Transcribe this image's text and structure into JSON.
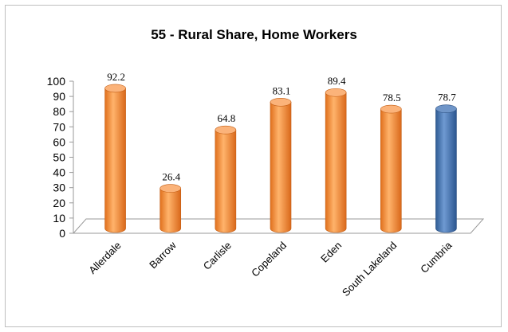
{
  "chart_data": {
    "type": "bar",
    "title": "55 - Rural Share, Home Workers",
    "xlabel": "",
    "ylabel": "",
    "categories": [
      "Allerdale",
      "Barrow",
      "Carlisle",
      "Copeland",
      "Eden",
      "South Lakeland",
      "Cumbria"
    ],
    "values": [
      92.2,
      26.4,
      64.8,
      83.1,
      89.4,
      78.5,
      78.7
    ],
    "value_labels": [
      "92.2",
      "26.4",
      "64.8",
      "83.1",
      "89.4",
      "78.5",
      "78.7"
    ],
    "ylim": [
      0,
      100
    ],
    "yticks": [
      0,
      10,
      20,
      30,
      40,
      50,
      60,
      70,
      80,
      90,
      100
    ],
    "grid": false,
    "legend": "none",
    "style": "3d-cylinder",
    "colors": {
      "default_bar": "#f79646",
      "highlight_bar": "#4f81bd",
      "highlight_category": "Cumbria"
    }
  }
}
